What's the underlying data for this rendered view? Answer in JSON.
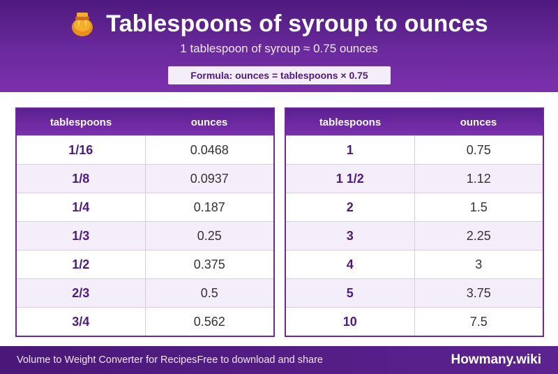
{
  "header": {
    "title": "Tablespoons of syroup to ounces",
    "subtitle": "1 tablespoon of syroup ≈ 0.75 ounces",
    "formula": "Formula: ounces = tablespoons × 0.75",
    "icon": "honey-pot-icon"
  },
  "tables": {
    "left": {
      "headers": [
        "tablespoons",
        "ounces"
      ],
      "rows": [
        [
          "1/16",
          "0.0468"
        ],
        [
          "1/8",
          "0.0937"
        ],
        [
          "1/4",
          "0.187"
        ],
        [
          "1/3",
          "0.25"
        ],
        [
          "1/2",
          "0.375"
        ],
        [
          "2/3",
          "0.5"
        ],
        [
          "3/4",
          "0.562"
        ]
      ]
    },
    "right": {
      "headers": [
        "tablespoons",
        "ounces"
      ],
      "rows": [
        [
          "1",
          "0.75"
        ],
        [
          "1 1/2",
          "1.12"
        ],
        [
          "2",
          "1.5"
        ],
        [
          "3",
          "2.25"
        ],
        [
          "4",
          "3"
        ],
        [
          "5",
          "3.75"
        ],
        [
          "10",
          "7.5"
        ]
      ]
    }
  },
  "footer": {
    "left_text_1": "Volume to Weight Converter for Recipes",
    "left_text_2": "Free to download and share",
    "brand": "Howmany.wiki"
  },
  "colors": {
    "primary": "#6a2a9c",
    "dark": "#4e1a7e",
    "row_alt": "#f3eefa"
  }
}
